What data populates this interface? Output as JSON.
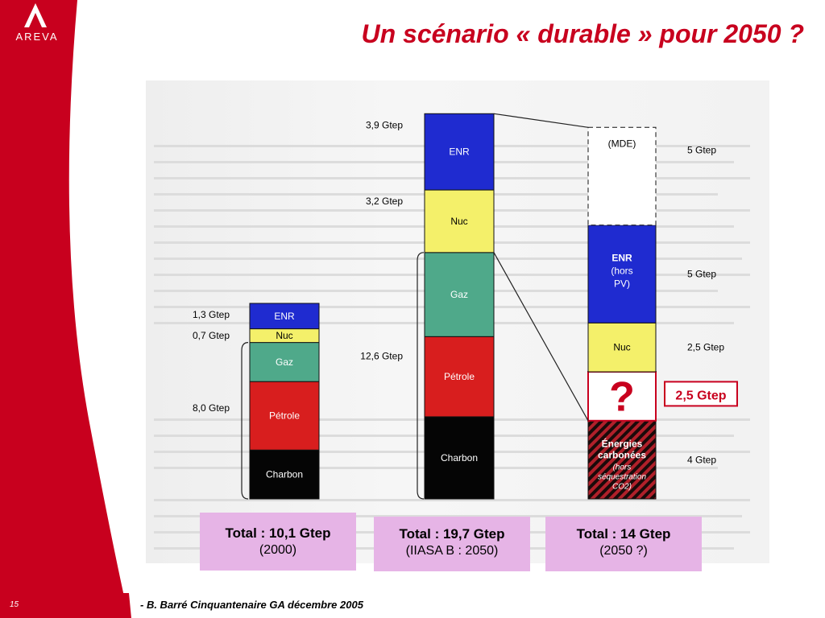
{
  "brand": {
    "name": "AREVA",
    "color": "#c8001e"
  },
  "slide": {
    "title": "Un scénario « durable » pour 2050 ?"
  },
  "footer": {
    "page": "15",
    "text": "- B. Barré Cinquantenaire GA décembre 2005"
  },
  "totals": [
    {
      "line1": "Total : 10,1 Gtep",
      "line2": "(2000)"
    },
    {
      "line1": "Total : 19,7 Gtep",
      "line2": "(IIASA B : 2050)"
    },
    {
      "line1": "Total : 14 Gtep",
      "line2": "(2050 ?)"
    }
  ],
  "chart_data": {
    "type": "bar",
    "stacked": true,
    "categories": [
      "(2000)",
      "(IIASA B : 2050)",
      "(2050 ?)"
    ],
    "unit": "Gtep",
    "colors": {
      "ENR": "#1f2bd0",
      "Nuc": "#f4f06a",
      "Gaz": "#4fa98a",
      "Pétrole": "#d81e1e",
      "Charbon": "#050505",
      "MDE": "#ffffff",
      "?": "#ffffff",
      "Énergies carbonées": "#b0202a"
    },
    "bars": [
      {
        "segments": [
          {
            "label": "Charbon",
            "value": 2.5
          },
          {
            "label": "Pétrole",
            "value": 3.5
          },
          {
            "label": "Gaz",
            "value": 2.0
          },
          {
            "label": "Nuc",
            "value": 0.7
          },
          {
            "label": "ENR",
            "value": 1.3
          }
        ],
        "annotations": [
          {
            "text": "1,3 Gtep",
            "segment": "ENR"
          },
          {
            "text": "0,7 Gtep",
            "segment": "Nuc"
          },
          {
            "text": "8,0 Gtep",
            "segment": "fossil"
          }
        ]
      },
      {
        "segments": [
          {
            "label": "Charbon",
            "value": 4.2
          },
          {
            "label": "Pétrole",
            "value": 4.1
          },
          {
            "label": "Gaz",
            "value": 4.3
          },
          {
            "label": "Nuc",
            "value": 3.2
          },
          {
            "label": "ENR",
            "value": 3.9
          }
        ],
        "annotations": [
          {
            "text": "3,9 Gtep",
            "segment": "ENR"
          },
          {
            "text": "3,2 Gtep",
            "segment": "Nuc"
          },
          {
            "text": "12,6 Gtep",
            "segment": "fossil"
          }
        ]
      },
      {
        "segments": [
          {
            "label": "Énergies carbonées",
            "sublabel": "(hors séquestration CO2)",
            "value": 4.0
          },
          {
            "label": "?",
            "value": 2.5
          },
          {
            "label": "Nuc",
            "value": 2.5
          },
          {
            "label": "ENR",
            "sublabel": "(hors PV)",
            "value": 5.0
          },
          {
            "label": "(MDE)",
            "value": 5.0,
            "dashed": true
          }
        ],
        "annotations": [
          {
            "text": "5 Gtep",
            "segment": "(MDE)"
          },
          {
            "text": "5 Gtep",
            "segment": "ENR"
          },
          {
            "text": "2,5 Gtep",
            "segment": "Nuc"
          },
          {
            "text": "2,5 Gtep",
            "segment": "?",
            "boxed": true
          },
          {
            "text": "4 Gtep",
            "segment": "Énergies carbonées"
          }
        ]
      }
    ]
  }
}
